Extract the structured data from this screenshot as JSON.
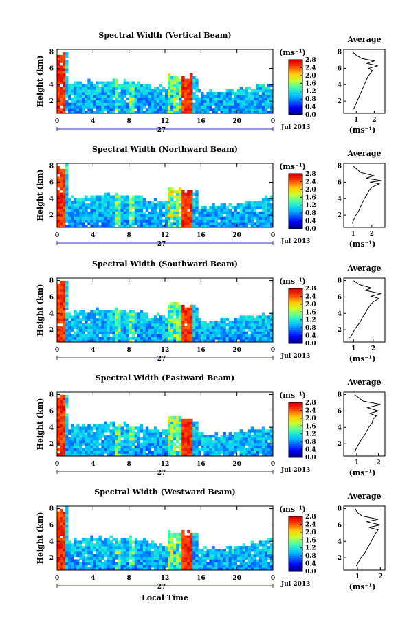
{
  "figure": {
    "date_label": "Jul 2013",
    "day_label": "27",
    "xlabel": "Local Time",
    "ylabel": "Height (km)",
    "unit_label": "(ms⁻¹)",
    "average_title": "Average",
    "average_xlabel": "(ms⁻¹)"
  },
  "chart_data": [
    {
      "type": "heatmap",
      "title": "Spectral Width (Vertical Beam)",
      "xlabel": "",
      "ylabel": "Height (km)",
      "x_ticks": [
        "0",
        "4",
        "8",
        "12",
        "16",
        "20",
        "0"
      ],
      "xlim": [
        0,
        24
      ],
      "y_ticks": [
        "2",
        "4",
        "6",
        "8"
      ],
      "ylim": [
        0.5,
        8.3
      ],
      "colorbar": {
        "label": "(ms⁻¹)",
        "ticks": [
          "0.0",
          "0.4",
          "0.8",
          "1.2",
          "1.6",
          "2.0",
          "2.4",
          "2.8"
        ],
        "range": [
          0,
          2.8
        ]
      },
      "profile": {
        "title": "Average",
        "xlabel": "(ms⁻¹)",
        "x_ticks": [
          "1",
          "2"
        ],
        "xlim": [
          0.3,
          2.6
        ],
        "points": [
          [
            0.85,
            1.0
          ],
          [
            0.95,
            1.5
          ],
          [
            1.05,
            2.0
          ],
          [
            1.15,
            2.5
          ],
          [
            1.25,
            3.0
          ],
          [
            1.35,
            3.5
          ],
          [
            1.45,
            4.0
          ],
          [
            1.55,
            4.5
          ],
          [
            1.65,
            5.0
          ],
          [
            1.8,
            5.4
          ],
          [
            1.9,
            5.7
          ],
          [
            1.7,
            6.0
          ],
          [
            2.2,
            6.3
          ],
          [
            1.6,
            6.6
          ],
          [
            2.0,
            6.9
          ],
          [
            1.3,
            7.2
          ],
          [
            1.0,
            7.6
          ],
          [
            0.8,
            8.0
          ]
        ]
      }
    },
    {
      "type": "heatmap",
      "title": "Spectral Width (Northward Beam)",
      "xlabel": "",
      "ylabel": "Height (km)",
      "x_ticks": [
        "0",
        "4",
        "8",
        "12",
        "16",
        "20",
        "0"
      ],
      "xlim": [
        0,
        24
      ],
      "y_ticks": [
        "2",
        "4",
        "6",
        "8"
      ],
      "ylim": [
        0.5,
        8.3
      ],
      "colorbar": {
        "label": "(ms⁻¹)",
        "ticks": [
          "0.0",
          "0.4",
          "0.8",
          "1.2",
          "1.6",
          "2.0",
          "2.4",
          "2.8"
        ],
        "range": [
          0,
          2.8
        ]
      },
      "profile": {
        "title": "Average",
        "xlabel": "(ms⁻¹)",
        "x_ticks": [
          "1",
          "2"
        ],
        "xlim": [
          0.5,
          2.7
        ],
        "points": [
          [
            0.95,
            1.0
          ],
          [
            1.05,
            1.5
          ],
          [
            1.15,
            2.0
          ],
          [
            1.3,
            2.5
          ],
          [
            1.4,
            3.0
          ],
          [
            1.5,
            3.5
          ],
          [
            1.6,
            4.0
          ],
          [
            1.75,
            4.5
          ],
          [
            1.85,
            5.0
          ],
          [
            2.0,
            5.4
          ],
          [
            2.4,
            5.8
          ],
          [
            1.9,
            6.0
          ],
          [
            2.5,
            6.2
          ],
          [
            1.7,
            6.5
          ],
          [
            2.1,
            6.8
          ],
          [
            1.4,
            7.2
          ],
          [
            1.2,
            7.6
          ],
          [
            1.0,
            8.0
          ]
        ]
      }
    },
    {
      "type": "heatmap",
      "title": "Spectral Width (Southward Beam)",
      "xlabel": "",
      "ylabel": "Height (km)",
      "x_ticks": [
        "0",
        "4",
        "8",
        "12",
        "16",
        "20",
        "0"
      ],
      "xlim": [
        0,
        24
      ],
      "y_ticks": [
        "2",
        "4",
        "6",
        "8"
      ],
      "ylim": [
        0.5,
        8.3
      ],
      "colorbar": {
        "label": "(ms⁻¹)",
        "ticks": [
          "0.0",
          "0.4",
          "0.8",
          "1.2",
          "1.6",
          "2.0",
          "2.4",
          "2.8"
        ],
        "range": [
          0,
          2.8
        ]
      },
      "profile": {
        "title": "Average",
        "xlabel": "(ms⁻¹)",
        "x_ticks": [
          "1",
          "2"
        ],
        "xlim": [
          0.5,
          2.6
        ],
        "points": [
          [
            0.8,
            1.0
          ],
          [
            0.95,
            1.5
          ],
          [
            1.05,
            2.0
          ],
          [
            1.2,
            2.5
          ],
          [
            1.35,
            3.0
          ],
          [
            1.45,
            3.5
          ],
          [
            1.6,
            4.0
          ],
          [
            1.7,
            4.5
          ],
          [
            1.85,
            5.0
          ],
          [
            2.0,
            5.4
          ],
          [
            2.3,
            5.8
          ],
          [
            1.9,
            6.1
          ],
          [
            2.4,
            6.4
          ],
          [
            1.6,
            6.8
          ],
          [
            1.9,
            7.1
          ],
          [
            1.3,
            7.5
          ],
          [
            1.0,
            8.0
          ]
        ]
      }
    },
    {
      "type": "heatmap",
      "title": "Spectral Width (Eastward Beam)",
      "xlabel": "",
      "ylabel": "Height (km)",
      "x_ticks": [
        "0",
        "4",
        "8",
        "12",
        "16",
        "20",
        "0"
      ],
      "xlim": [
        0,
        24
      ],
      "y_ticks": [
        "2",
        "4",
        "6",
        "8"
      ],
      "ylim": [
        0.5,
        8.3
      ],
      "colorbar": {
        "label": "(ms⁻¹)",
        "ticks": [
          "0.0",
          "0.4",
          "0.8",
          "1.2",
          "1.6",
          "2.0",
          "2.4",
          "2.8"
        ],
        "range": [
          0,
          2.8
        ]
      },
      "profile": {
        "title": "Average",
        "xlabel": "(ms⁻¹)",
        "x_ticks": [
          "1",
          "2"
        ],
        "xlim": [
          0.4,
          2.3
        ],
        "points": [
          [
            0.9,
            1.0
          ],
          [
            1.0,
            1.5
          ],
          [
            1.1,
            2.0
          ],
          [
            1.2,
            2.5
          ],
          [
            1.35,
            3.0
          ],
          [
            1.45,
            3.5
          ],
          [
            1.55,
            4.0
          ],
          [
            1.7,
            4.5
          ],
          [
            1.75,
            5.0
          ],
          [
            1.9,
            5.4
          ],
          [
            1.6,
            5.7
          ],
          [
            2.0,
            6.0
          ],
          [
            1.5,
            6.4
          ],
          [
            2.1,
            6.8
          ],
          [
            1.3,
            7.2
          ],
          [
            1.1,
            7.6
          ],
          [
            0.9,
            8.0
          ]
        ]
      }
    },
    {
      "type": "heatmap",
      "title": "Spectral Width (Westward Beam)",
      "xlabel": "Local Time",
      "ylabel": "Height (km)",
      "x_ticks": [
        "0",
        "4",
        "8",
        "12",
        "16",
        "20",
        "0"
      ],
      "xlim": [
        0,
        24
      ],
      "y_ticks": [
        "2",
        "4",
        "6",
        "8"
      ],
      "ylim": [
        0.5,
        8.3
      ],
      "colorbar": {
        "label": "(ms⁻¹)",
        "ticks": [
          "0.0",
          "0.4",
          "0.8",
          "1.2",
          "1.6",
          "2.0",
          "2.4",
          "2.8"
        ],
        "range": [
          0,
          2.8
        ]
      },
      "profile": {
        "title": "Average",
        "xlabel": "(ms⁻¹)",
        "x_ticks": [
          "1",
          "2"
        ],
        "xlim": [
          0.4,
          2.2
        ],
        "points": [
          [
            0.95,
            1.0
          ],
          [
            1.05,
            1.5
          ],
          [
            1.15,
            2.0
          ],
          [
            1.3,
            2.5
          ],
          [
            1.4,
            3.0
          ],
          [
            1.5,
            3.5
          ],
          [
            1.6,
            4.0
          ],
          [
            1.7,
            4.5
          ],
          [
            1.8,
            5.0
          ],
          [
            1.9,
            5.4
          ],
          [
            1.5,
            5.7
          ],
          [
            2.0,
            6.0
          ],
          [
            1.4,
            6.4
          ],
          [
            1.9,
            6.7
          ],
          [
            1.2,
            7.1
          ],
          [
            1.0,
            7.5
          ],
          [
            0.9,
            8.0
          ]
        ]
      }
    }
  ]
}
